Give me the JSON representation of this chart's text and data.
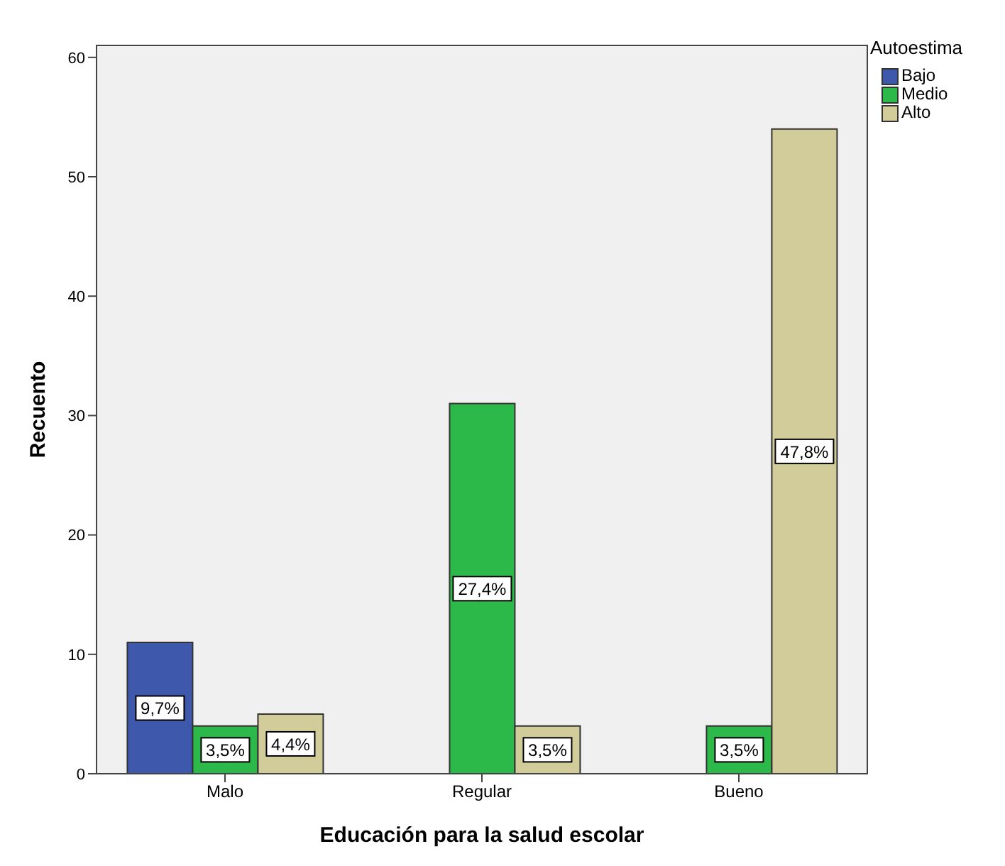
{
  "chart_data": {
    "type": "bar",
    "xlabel": "Educación para la salud escolar",
    "ylabel": "Recuento",
    "legend_title": "Autoestima",
    "legend": "top right",
    "categories": [
      "Malo",
      "Regular",
      "Bueno"
    ],
    "series": [
      {
        "name": "Bajo",
        "color": "#3e58ac",
        "values": [
          11,
          0,
          0
        ]
      },
      {
        "name": "Medio",
        "color": "#2db84a",
        "values": [
          4,
          31,
          4
        ]
      },
      {
        "name": "Alto",
        "color": "#d2cc9a",
        "values": [
          5,
          4,
          54
        ]
      }
    ],
    "annotations": [
      "9,7%",
      "3,5%",
      "4,4%",
      "27,4%",
      "3,5%",
      "3,5%",
      "47,8%"
    ],
    "ylim": [
      0,
      61
    ],
    "yticks": [
      0,
      10,
      20,
      30,
      40,
      50,
      60
    ]
  }
}
